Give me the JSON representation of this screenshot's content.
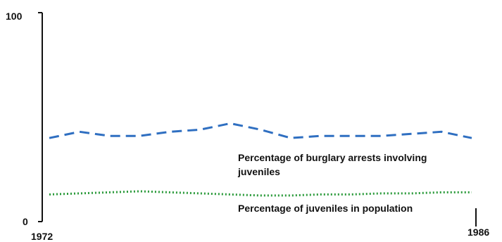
{
  "chart_data": {
    "type": "line",
    "title": "",
    "xlabel": "",
    "ylabel": "",
    "x": [
      1972,
      1973,
      1974,
      1975,
      1976,
      1977,
      1978,
      1979,
      1980,
      1981,
      1982,
      1983,
      1984,
      1985,
      1986
    ],
    "xlim": [
      1972,
      1986
    ],
    "ylim": [
      0,
      100
    ],
    "x_tick_labels": [
      "1972",
      "1986"
    ],
    "y_tick_labels": [
      "0",
      "100"
    ],
    "grid": false,
    "legend": "none",
    "series": [
      {
        "name": "Percentage of burglary arrests involving juveniles",
        "label_lines": [
          "Percentage of burglary arrests involving",
          "juveniles"
        ],
        "values": [
          40,
          43,
          41,
          41,
          43,
          44,
          47,
          44,
          40,
          41,
          41,
          41,
          42,
          43,
          40
        ],
        "color": "#2f6fc1",
        "style": "dashed"
      },
      {
        "name": "Percentage of juveniles in population",
        "label_lines": [
          "Percentage of juveniles in population"
        ],
        "values": [
          13,
          13.5,
          14,
          14.5,
          14,
          13.5,
          13,
          12.5,
          12.5,
          13,
          13,
          13.5,
          13.5,
          14,
          14
        ],
        "color": "#2a9a3a",
        "style": "dotted"
      }
    ]
  }
}
